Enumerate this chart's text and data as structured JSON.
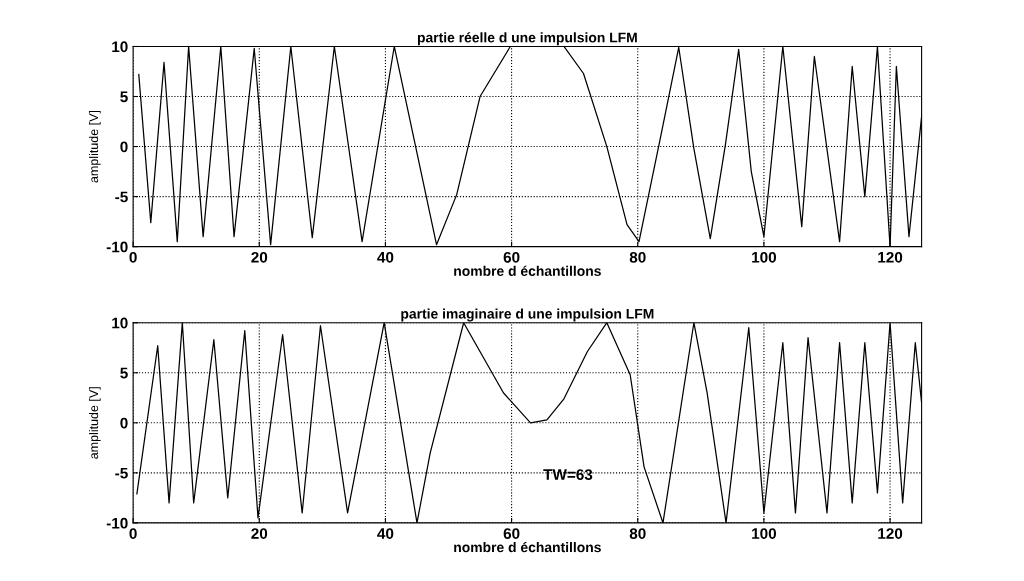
{
  "chart_data": [
    {
      "type": "line",
      "title": "partie réelle d une impulsion LFM",
      "xlabel": "nombre d échantillons",
      "ylabel": "amplitude [V]",
      "xlim": [
        0,
        125
      ],
      "ylim": [
        -10,
        10
      ],
      "xticks": [
        0,
        20,
        40,
        60,
        80,
        100,
        120
      ],
      "yticks": [
        -10,
        -5,
        0,
        5,
        10
      ],
      "grid": true,
      "line_style": "solid",
      "series": [
        {
          "color": "#000000",
          "x": [
            0.9,
            2.8,
            4.9,
            7,
            8.8,
            11.1,
            13.9,
            16,
            19.2,
            21.8,
            25,
            28.4,
            31.9,
            36.3,
            41.4,
            48.1,
            51.3,
            55,
            59.8,
            64,
            68.3,
            71.4,
            75.1,
            78.3,
            80.2,
            83.6,
            86.5,
            88.9,
            91.5,
            93.9,
            96,
            98,
            100,
            103,
            106,
            108,
            112,
            114,
            116,
            118,
            120,
            121,
            123,
            125
          ],
          "values": [
            7.2,
            -7.6,
            8.4,
            -9.5,
            10,
            -9,
            10,
            -9,
            9.8,
            -9.8,
            10,
            -9.1,
            10,
            -9.5,
            10,
            -9.8,
            -4.8,
            5,
            10,
            10,
            10,
            7.3,
            0,
            -7.8,
            -9.5,
            0.9,
            9.9,
            -0.2,
            -9.2,
            0.2,
            9.7,
            -2.5,
            -9,
            10,
            -8,
            9,
            -9.5,
            8,
            -5,
            10,
            -10,
            8,
            -9,
            3
          ]
        }
      ]
    },
    {
      "type": "line",
      "title": "partie imaginaire d une impulsion LFM",
      "xlabel": "nombre d échantillons",
      "ylabel": "amplitude [V]",
      "xlim": [
        0,
        125
      ],
      "ylim": [
        -10,
        10
      ],
      "xticks": [
        0,
        20,
        40,
        60,
        80,
        100,
        120
      ],
      "yticks": [
        -10,
        -5,
        0,
        5,
        10
      ],
      "grid": true,
      "line_style": "solid",
      "annotations": [
        "TW=63"
      ],
      "series": [
        {
          "color": "#000000",
          "x": [
            0.6,
            3.9,
            5.7,
            7.8,
            9.6,
            12.8,
            15,
            17.7,
            19.8,
            23.7,
            26.8,
            29.7,
            34,
            39.8,
            45,
            47.1,
            52.4,
            58.7,
            63,
            65.6,
            68.3,
            72,
            75.1,
            78.8,
            81,
            84,
            88.9,
            91,
            94,
            97.6,
            100,
            103,
            105,
            107,
            110,
            112,
            114,
            116,
            118,
            120,
            122,
            124,
            125
          ],
          "values": [
            -7.1,
            7.7,
            -8,
            10,
            -8,
            8.3,
            -7.5,
            9.2,
            -9.5,
            8.8,
            -9,
            9.7,
            -9,
            10,
            -10,
            -3,
            10,
            3,
            0,
            0.3,
            2.4,
            7.1,
            10,
            4.8,
            -4.4,
            -10,
            10,
            3,
            -10,
            9.5,
            -9,
            8,
            -9,
            8.5,
            -9,
            8,
            -8,
            8,
            -7,
            10,
            -8,
            8,
            2
          ]
        }
      ]
    }
  ]
}
